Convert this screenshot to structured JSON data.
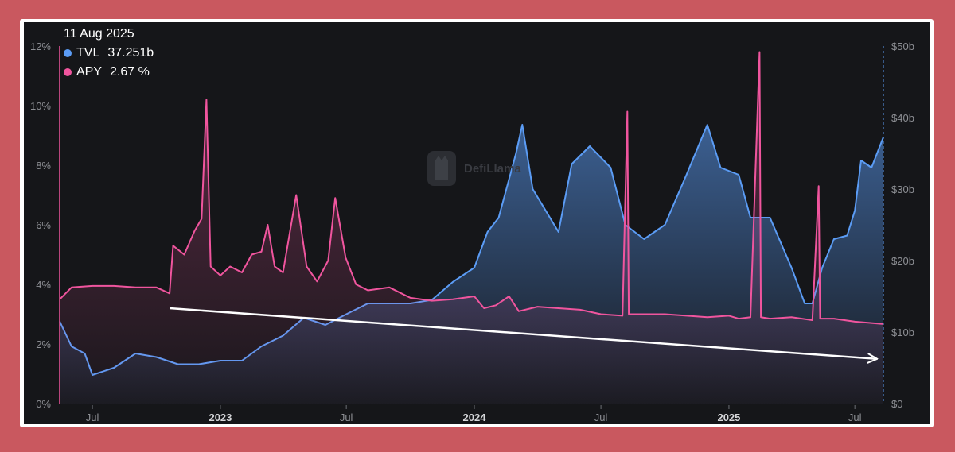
{
  "tooltip": {
    "date": "11 Aug 2025",
    "series": [
      {
        "name": "TVL",
        "value": "37.251b",
        "color": "#5b9cf5"
      },
      {
        "name": "APY",
        "value": "2.67 %",
        "color": "#f0559e"
      }
    ]
  },
  "watermark": "DefiLlama",
  "chart_data": {
    "type": "line",
    "x_ticks": [
      {
        "label": "Jul",
        "date": "2022-07-01",
        "bold": false
      },
      {
        "label": "2023",
        "date": "2023-01-01",
        "bold": true
      },
      {
        "label": "Jul",
        "date": "2023-07-01",
        "bold": false
      },
      {
        "label": "2024",
        "date": "2024-01-01",
        "bold": true
      },
      {
        "label": "Jul",
        "date": "2024-07-01",
        "bold": false
      },
      {
        "label": "2025",
        "date": "2025-01-01",
        "bold": true
      },
      {
        "label": "Jul",
        "date": "2025-07-01",
        "bold": false
      }
    ],
    "xlim": [
      "2022-05-15",
      "2025-08-11"
    ],
    "left_axis": {
      "ticks": [
        "0%",
        "2%",
        "4%",
        "6%",
        "8%",
        "10%",
        "12%"
      ],
      "ylim": [
        0,
        12
      ]
    },
    "right_axis": {
      "ticks": [
        "$0",
        "$10b",
        "$20b",
        "$30b",
        "$40b",
        "$50b"
      ],
      "ylim": [
        0,
        50
      ]
    },
    "series": [
      {
        "name": "APY",
        "axis": "left",
        "unit": "%",
        "color": "#f0559e",
        "points": [
          [
            "2022-05-15",
            3.5
          ],
          [
            "2022-06-01",
            3.9
          ],
          [
            "2022-07-01",
            3.95
          ],
          [
            "2022-08-01",
            3.95
          ],
          [
            "2022-09-01",
            3.9
          ],
          [
            "2022-10-01",
            3.9
          ],
          [
            "2022-10-20",
            3.7
          ],
          [
            "2022-10-25",
            5.3
          ],
          [
            "2022-11-10",
            5.0
          ],
          [
            "2022-11-25",
            5.8
          ],
          [
            "2022-12-05",
            6.2
          ],
          [
            "2022-12-12",
            10.2
          ],
          [
            "2022-12-18",
            4.6
          ],
          [
            "2023-01-01",
            4.3
          ],
          [
            "2023-01-15",
            4.6
          ],
          [
            "2023-02-01",
            4.4
          ],
          [
            "2023-02-15",
            5.0
          ],
          [
            "2023-03-01",
            5.1
          ],
          [
            "2023-03-10",
            6.0
          ],
          [
            "2023-03-20",
            4.6
          ],
          [
            "2023-04-01",
            4.4
          ],
          [
            "2023-04-20",
            7.0
          ],
          [
            "2023-05-05",
            4.6
          ],
          [
            "2023-05-20",
            4.1
          ],
          [
            "2023-06-05",
            4.8
          ],
          [
            "2023-06-15",
            6.9
          ],
          [
            "2023-06-30",
            4.9
          ],
          [
            "2023-07-15",
            4.0
          ],
          [
            "2023-08-01",
            3.8
          ],
          [
            "2023-09-01",
            3.9
          ],
          [
            "2023-10-01",
            3.55
          ],
          [
            "2023-11-01",
            3.45
          ],
          [
            "2023-12-01",
            3.5
          ],
          [
            "2024-01-01",
            3.6
          ],
          [
            "2024-01-15",
            3.2
          ],
          [
            "2024-02-01",
            3.3
          ],
          [
            "2024-02-20",
            3.6
          ],
          [
            "2024-03-05",
            3.1
          ],
          [
            "2024-04-01",
            3.25
          ],
          [
            "2024-05-01",
            3.2
          ],
          [
            "2024-06-01",
            3.15
          ],
          [
            "2024-07-01",
            3.0
          ],
          [
            "2024-08-01",
            2.95
          ],
          [
            "2024-08-08",
            9.8
          ],
          [
            "2024-08-10",
            3.0
          ],
          [
            "2024-09-01",
            3.0
          ],
          [
            "2024-10-01",
            3.0
          ],
          [
            "2024-11-01",
            2.95
          ],
          [
            "2024-12-01",
            2.9
          ],
          [
            "2025-01-01",
            2.95
          ],
          [
            "2025-01-15",
            2.85
          ],
          [
            "2025-02-01",
            2.9
          ],
          [
            "2025-02-14",
            11.8
          ],
          [
            "2025-02-16",
            2.9
          ],
          [
            "2025-03-01",
            2.85
          ],
          [
            "2025-04-01",
            2.9
          ],
          [
            "2025-05-01",
            2.8
          ],
          [
            "2025-05-10",
            7.3
          ],
          [
            "2025-05-12",
            2.85
          ],
          [
            "2025-06-01",
            2.85
          ],
          [
            "2025-07-01",
            2.75
          ],
          [
            "2025-08-11",
            2.67
          ]
        ]
      },
      {
        "name": "TVL",
        "axis": "right",
        "unit": "$b",
        "color": "#5b9cf5",
        "points": [
          [
            "2022-05-15",
            11.5
          ],
          [
            "2022-06-01",
            8.0
          ],
          [
            "2022-06-20",
            7.0
          ],
          [
            "2022-07-01",
            4.0
          ],
          [
            "2022-08-01",
            5.0
          ],
          [
            "2022-09-01",
            7.0
          ],
          [
            "2022-10-01",
            6.5
          ],
          [
            "2022-11-01",
            5.5
          ],
          [
            "2022-12-01",
            5.5
          ],
          [
            "2023-01-01",
            6.0
          ],
          [
            "2023-02-01",
            6.0
          ],
          [
            "2023-03-01",
            8.0
          ],
          [
            "2023-04-01",
            9.5
          ],
          [
            "2023-05-01",
            12.0
          ],
          [
            "2023-06-01",
            11.0
          ],
          [
            "2023-07-01",
            12.5
          ],
          [
            "2023-08-01",
            14.0
          ],
          [
            "2023-09-01",
            14.0
          ],
          [
            "2023-10-01",
            14.0
          ],
          [
            "2023-11-01",
            14.5
          ],
          [
            "2023-12-01",
            17.0
          ],
          [
            "2024-01-01",
            19.0
          ],
          [
            "2024-01-20",
            24.0
          ],
          [
            "2024-02-05",
            26.0
          ],
          [
            "2024-03-01",
            35.0
          ],
          [
            "2024-03-10",
            39.0
          ],
          [
            "2024-03-25",
            30.0
          ],
          [
            "2024-05-01",
            24.0
          ],
          [
            "2024-05-20",
            33.5
          ],
          [
            "2024-06-15",
            36.0
          ],
          [
            "2024-07-15",
            33.0
          ],
          [
            "2024-08-05",
            25.0
          ],
          [
            "2024-09-01",
            23.0
          ],
          [
            "2024-10-01",
            25.0
          ],
          [
            "2024-11-01",
            32.0
          ],
          [
            "2024-12-01",
            39.0
          ],
          [
            "2024-12-20",
            33.0
          ],
          [
            "2025-01-15",
            32.0
          ],
          [
            "2025-02-01",
            26.0
          ],
          [
            "2025-03-01",
            26.0
          ],
          [
            "2025-04-01",
            19.0
          ],
          [
            "2025-04-20",
            14.0
          ],
          [
            "2025-05-01",
            14.0
          ],
          [
            "2025-05-15",
            19.0
          ],
          [
            "2025-06-01",
            23.0
          ],
          [
            "2025-06-20",
            23.5
          ],
          [
            "2025-07-01",
            27.0
          ],
          [
            "2025-07-10",
            34.0
          ],
          [
            "2025-07-25",
            33.0
          ],
          [
            "2025-08-11",
            37.251
          ]
        ]
      }
    ],
    "trend_arrow": {
      "from": [
        "2022-10-20",
        3.2
      ],
      "to": [
        "2025-08-01",
        1.5
      ],
      "axis": "left",
      "color": "#ffffff"
    }
  }
}
